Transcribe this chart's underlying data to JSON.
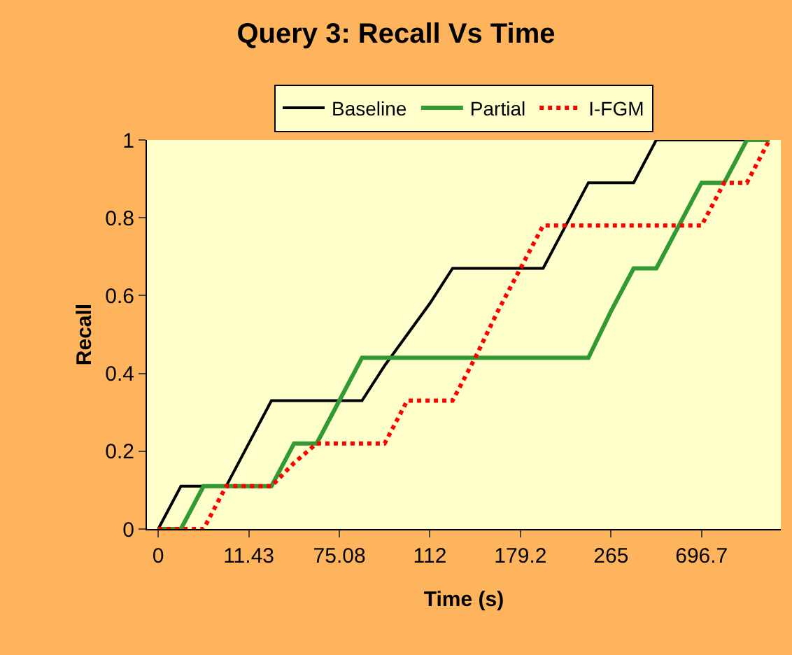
{
  "chart_data": {
    "type": "line",
    "title": "Query 3: Recall Vs Time",
    "xlabel": "Time (s)",
    "ylabel": "Recall",
    "categories": [
      "0",
      null,
      null,
      null,
      "11.43",
      null,
      null,
      null,
      "75.08",
      null,
      null,
      null,
      "112",
      null,
      null,
      null,
      "179.2",
      null,
      null,
      null,
      "265",
      null,
      null,
      null,
      "696.7",
      null,
      null,
      null
    ],
    "series": [
      {
        "name": "Baseline",
        "color": "#000000",
        "line_style": "solid",
        "values": [
          0,
          0.11,
          0.11,
          0.11,
          0.22,
          0.33,
          0.33,
          0.33,
          0.33,
          0.33,
          0.42,
          0.5,
          0.58,
          0.67,
          0.67,
          0.67,
          0.67,
          0.67,
          0.78,
          0.89,
          0.89,
          0.89,
          1,
          1,
          1,
          1,
          1,
          1
        ]
      },
      {
        "name": "Partial",
        "color": "#339933",
        "line_style": "solid",
        "values": [
          0,
          0,
          0.11,
          0.11,
          0.11,
          0.11,
          0.22,
          0.22,
          0.33,
          0.44,
          0.44,
          0.44,
          0.44,
          0.44,
          0.44,
          0.44,
          0.44,
          0.44,
          0.44,
          0.44,
          0.56,
          0.67,
          0.67,
          0.78,
          0.89,
          0.89,
          1,
          1
        ]
      },
      {
        "name": "I-FGM",
        "color": "#ff0000",
        "line_style": "dotted",
        "values": [
          0,
          0,
          0,
          0.11,
          0.11,
          0.11,
          0.17,
          0.22,
          0.22,
          0.22,
          0.22,
          0.33,
          0.33,
          0.33,
          0.44,
          0.56,
          0.67,
          0.78,
          0.78,
          0.78,
          0.78,
          0.78,
          0.78,
          0.78,
          0.78,
          0.89,
          0.89,
          1
        ]
      }
    ],
    "ylim": [
      0,
      1
    ],
    "yticks": [
      0,
      0.2,
      0.4,
      0.6,
      0.8,
      1
    ],
    "grid": false,
    "legend": "top",
    "marker": "none"
  }
}
